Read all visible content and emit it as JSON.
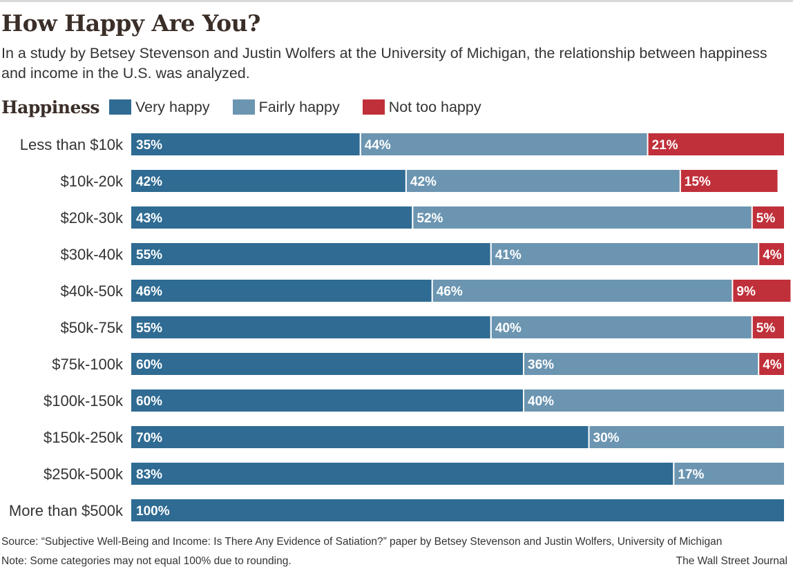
{
  "title": "How Happy Are You?",
  "subtitle": "In a study by Betsey Stevenson and Justin Wolfers at the University of Michigan, the relationship between happiness and income in the U.S. was analyzed.",
  "legend": {
    "title": "Happiness",
    "items": [
      {
        "label": "Very happy",
        "color": "#2f6b93"
      },
      {
        "label": "Fairly happy",
        "color": "#6b95b1"
      },
      {
        "label": "Not too happy",
        "color": "#c0303a"
      }
    ]
  },
  "chart_data": {
    "type": "bar",
    "orientation": "horizontal",
    "stacked": true,
    "categories": [
      "Less than $10k",
      "$10k-20k",
      "$20k-30k",
      "$30k-40k",
      "$40k-50k",
      "$50k-75k",
      "$75k-100k",
      "$100k-150k",
      "$150k-250k",
      "$250k-500k",
      "More than $500k"
    ],
    "series": [
      {
        "name": "Very happy",
        "color": "#2f6b93",
        "values": [
          35,
          42,
          43,
          55,
          46,
          55,
          60,
          60,
          70,
          83,
          100
        ]
      },
      {
        "name": "Fairly happy",
        "color": "#6b95b1",
        "values": [
          44,
          42,
          52,
          41,
          46,
          40,
          36,
          40,
          30,
          17,
          0
        ]
      },
      {
        "name": "Not too happy",
        "color": "#c0303a",
        "values": [
          21,
          15,
          5,
          4,
          9,
          5,
          4,
          0,
          0,
          0,
          0
        ]
      }
    ],
    "value_suffix": "%",
    "legend_position": "top-left",
    "grid": false
  },
  "footer": {
    "source": "Source: “Subjective Well-Being and Income: Is There Any Evidence of Satiation?” paper by Betsey Stevenson and Justin Wolfers, University of Michigan",
    "note": "Note: Some categories may not equal 100% due to rounding.",
    "credit": "The Wall Street Journal"
  }
}
